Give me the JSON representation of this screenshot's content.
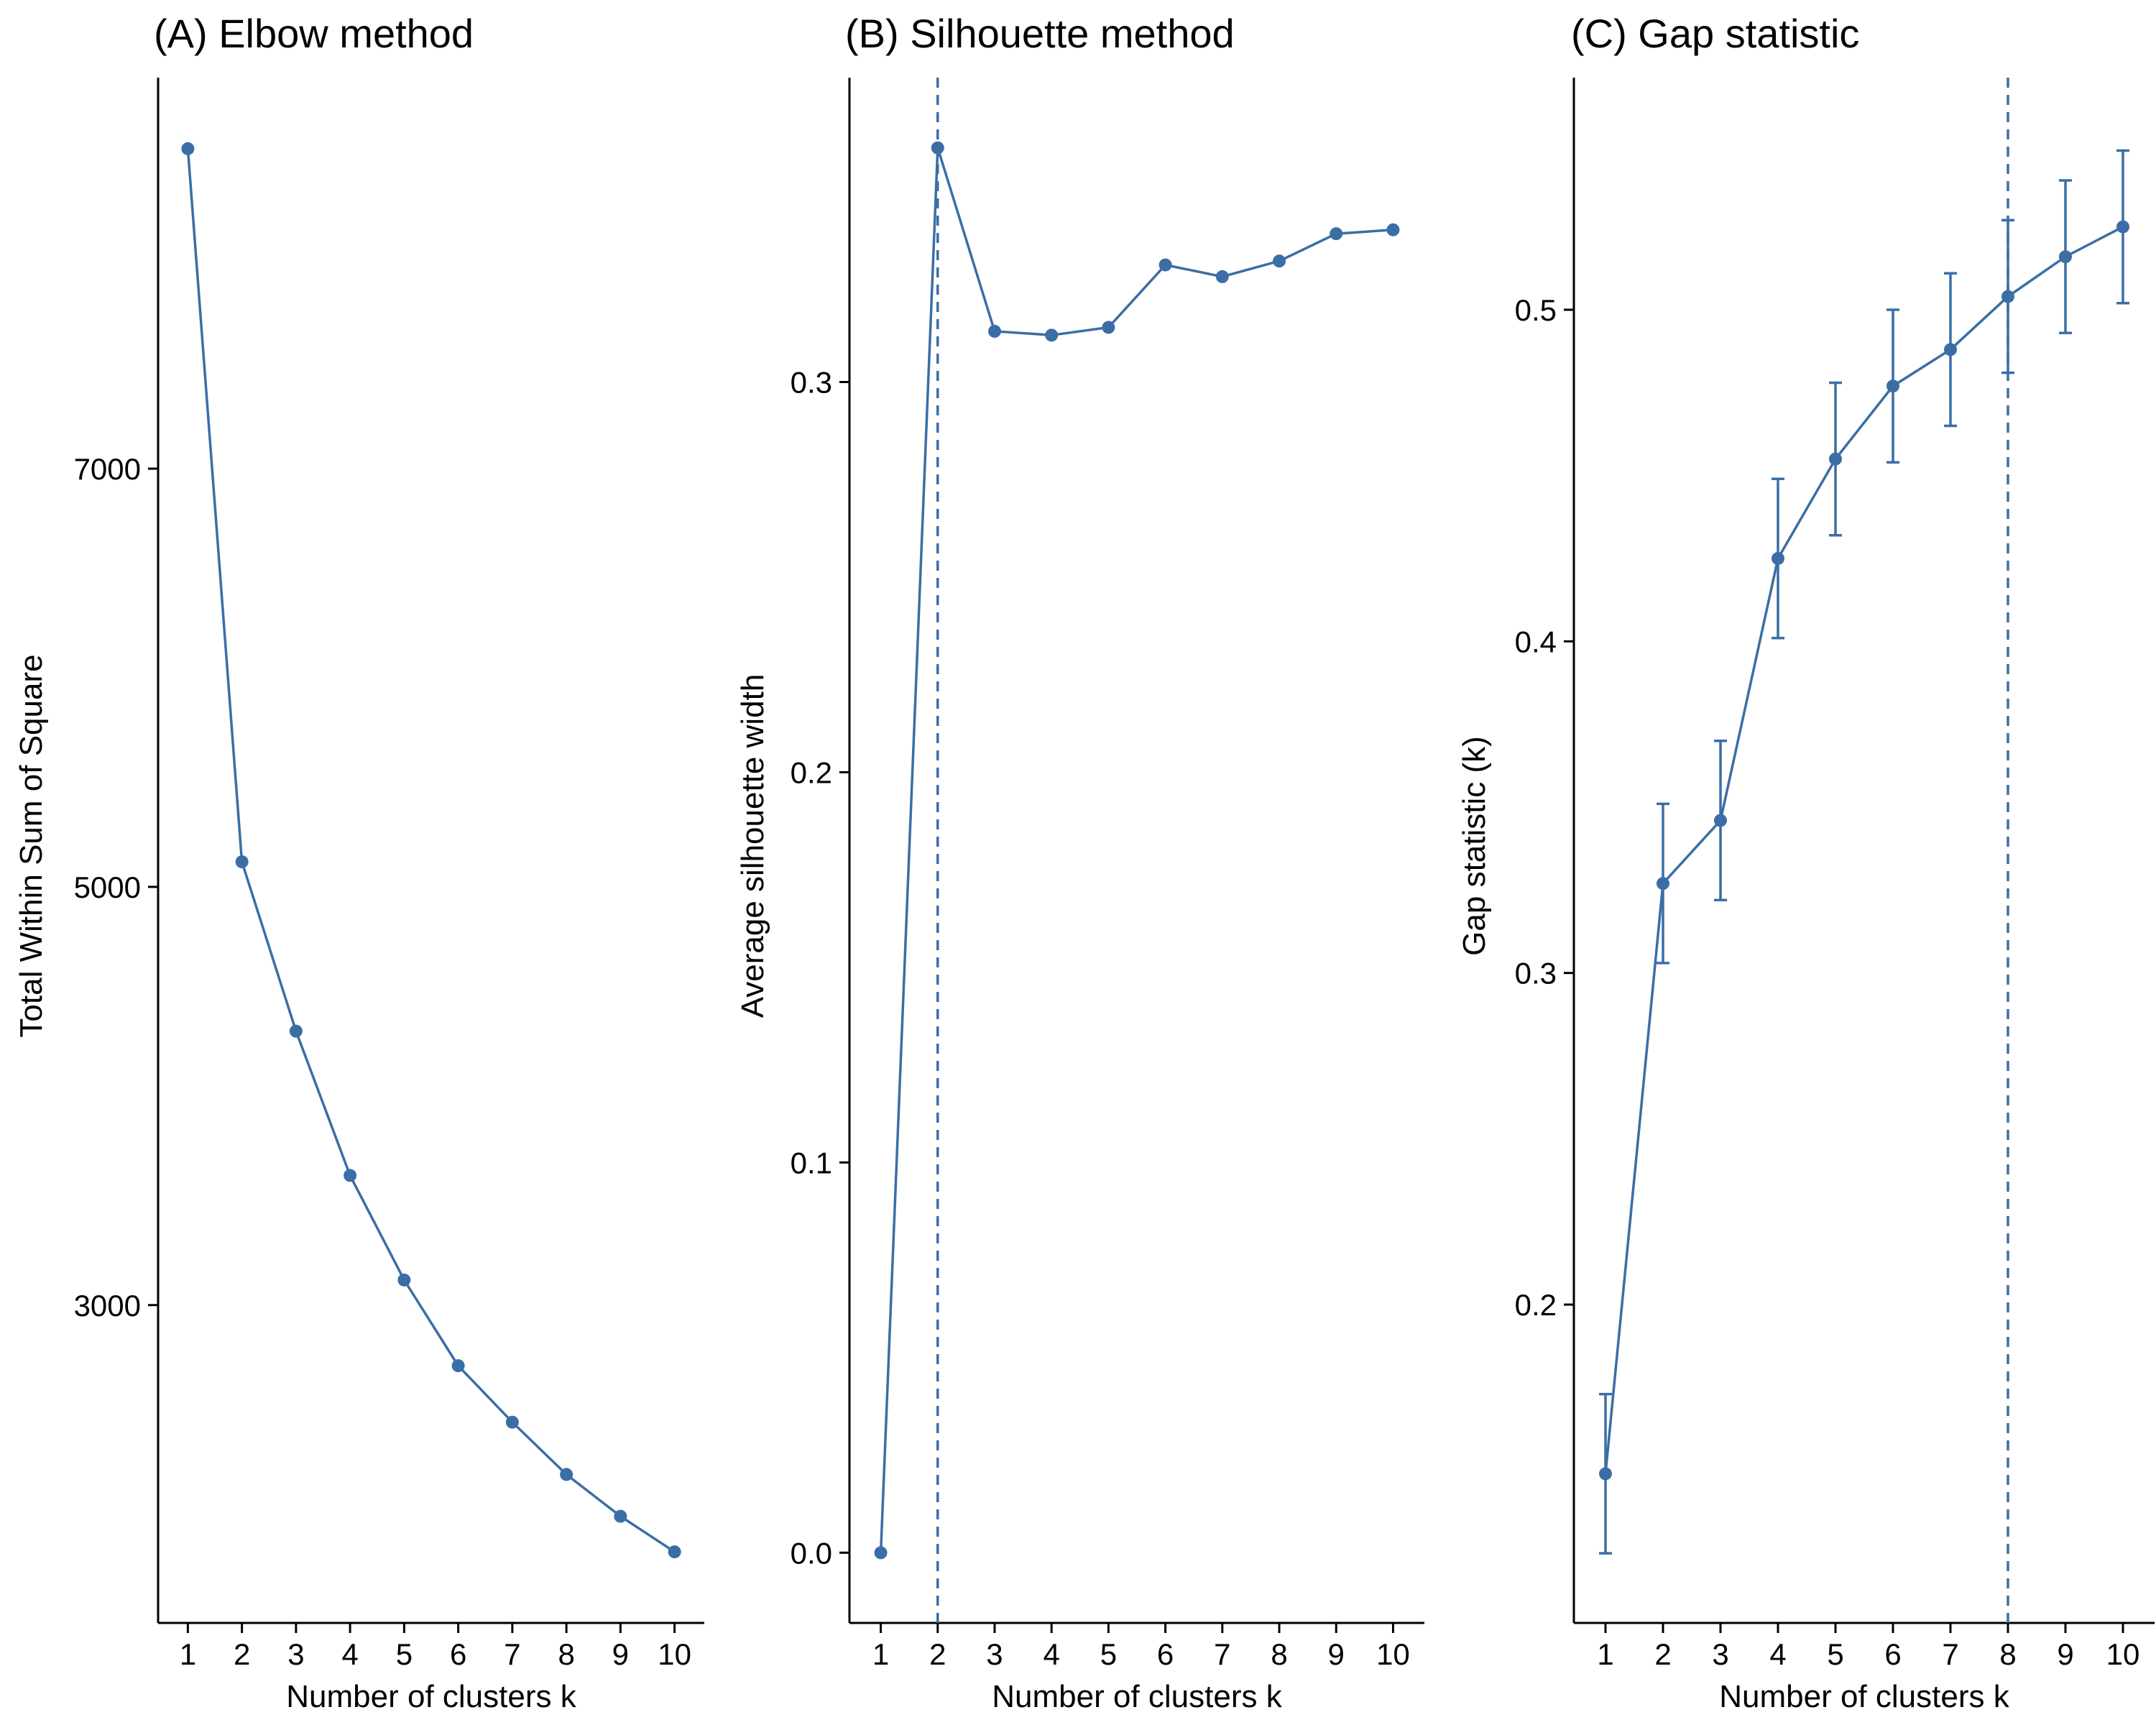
{
  "colors": {
    "series": "#3a6ea5",
    "axis": "#000000",
    "background": "#ffffff"
  },
  "chart_data": [
    {
      "type": "line",
      "title": "(A) Elbow method",
      "xlabel": "Number of clusters k",
      "ylabel": "Total Within Sum of Square",
      "x": [
        1,
        2,
        3,
        4,
        5,
        6,
        7,
        8,
        9,
        10
      ],
      "x_ticks": [
        "1",
        "2",
        "3",
        "4",
        "5",
        "6",
        "7",
        "8",
        "9",
        "10"
      ],
      "y": [
        8530,
        5120,
        4310,
        3620,
        3120,
        2710,
        2440,
        2190,
        1990,
        1820
      ],
      "y_ticks": [
        3000,
        5000,
        7000
      ],
      "y_tick_labels": [
        "3000",
        "5000",
        "7000"
      ],
      "xlim": [
        0.45,
        10.55
      ],
      "ylim": [
        1480,
        8870
      ],
      "grid": false
    },
    {
      "type": "line",
      "title": "(B) Silhouette method",
      "xlabel": "Number of clusters k",
      "ylabel": "Average silhouette width",
      "x": [
        1,
        2,
        3,
        4,
        5,
        6,
        7,
        8,
        9,
        10
      ],
      "x_ticks": [
        "1",
        "2",
        "3",
        "4",
        "5",
        "6",
        "7",
        "8",
        "9",
        "10"
      ],
      "y": [
        0.0,
        0.36,
        0.313,
        0.312,
        0.314,
        0.33,
        0.327,
        0.331,
        0.338,
        0.339
      ],
      "y_ticks": [
        0.0,
        0.1,
        0.2,
        0.3
      ],
      "y_tick_labels": [
        "0.0",
        "0.1",
        "0.2",
        "0.3"
      ],
      "xlim": [
        0.45,
        10.55
      ],
      "ylim": [
        -0.018,
        0.378
      ],
      "reference_line_x": 2,
      "grid": false
    },
    {
      "type": "line",
      "title": "(C) Gap statistic",
      "xlabel": "Number of clusters k",
      "ylabel": "Gap statistic (k)",
      "x": [
        1,
        2,
        3,
        4,
        5,
        6,
        7,
        8,
        9,
        10
      ],
      "x_ticks": [
        "1",
        "2",
        "3",
        "4",
        "5",
        "6",
        "7",
        "8",
        "9",
        "10"
      ],
      "y": [
        0.149,
        0.327,
        0.346,
        0.425,
        0.455,
        0.477,
        0.488,
        0.504,
        0.516,
        0.525
      ],
      "error": [
        0.024,
        0.024,
        0.024,
        0.024,
        0.023,
        0.023,
        0.023,
        0.023,
        0.023,
        0.023
      ],
      "y_ticks": [
        0.2,
        0.3,
        0.4,
        0.5
      ],
      "y_tick_labels": [
        "0.2",
        "0.3",
        "0.4",
        "0.5"
      ],
      "xlim": [
        0.45,
        10.55
      ],
      "ylim": [
        0.104,
        0.57
      ],
      "reference_line_x": 8,
      "grid": false
    }
  ]
}
